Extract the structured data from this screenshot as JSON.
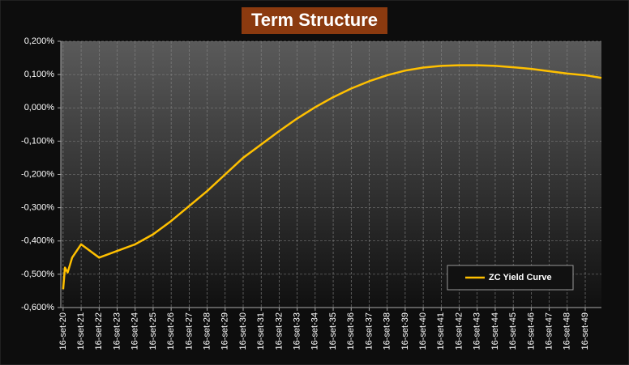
{
  "chart_data": {
    "type": "line",
    "title": "Term Structure",
    "x": [
      2020.0,
      2020.1,
      2020.25,
      2020.5,
      2021.0,
      2022.0,
      2023.0,
      2024.0,
      2025.0,
      2026.0,
      2027.0,
      2028.0,
      2029.0,
      2030.0,
      2031.0,
      2032.0,
      2033.0,
      2034.0,
      2035.0,
      2036.0,
      2037.0,
      2038.0,
      2039.0,
      2040.0,
      2041.0,
      2042.0,
      2043.0,
      2044.0,
      2045.0,
      2046.0,
      2047.0,
      2048.0,
      2049.0,
      2049.9
    ],
    "series": [
      {
        "name": "ZC Yield Curve",
        "color": "#ffc000",
        "values": [
          -0.545,
          -0.48,
          -0.495,
          -0.45,
          -0.41,
          -0.45,
          -0.43,
          -0.41,
          -0.38,
          -0.34,
          -0.295,
          -0.25,
          -0.2,
          -0.15,
          -0.11,
          -0.07,
          -0.032,
          0.002,
          0.032,
          0.058,
          0.08,
          0.098,
          0.112,
          0.121,
          0.126,
          0.128,
          0.128,
          0.126,
          0.122,
          0.117,
          0.11,
          0.103,
          0.098,
          0.09
        ]
      }
    ],
    "xlim": [
      2019.87,
      2049.9
    ],
    "xticks": [
      {
        "value": 2020,
        "label": "16-set-20"
      },
      {
        "value": 2021,
        "label": "16-set-21"
      },
      {
        "value": 2022,
        "label": "16-set-22"
      },
      {
        "value": 2023,
        "label": "16-set-23"
      },
      {
        "value": 2024,
        "label": "16-set-24"
      },
      {
        "value": 2025,
        "label": "16-set-25"
      },
      {
        "value": 2026,
        "label": "16-set-26"
      },
      {
        "value": 2027,
        "label": "16-set-27"
      },
      {
        "value": 2028,
        "label": "16-set-28"
      },
      {
        "value": 2029,
        "label": "16-set-29"
      },
      {
        "value": 2030,
        "label": "16-set-30"
      },
      {
        "value": 2031,
        "label": "16-set-31"
      },
      {
        "value": 2032,
        "label": "16-set-32"
      },
      {
        "value": 2033,
        "label": "16-set-33"
      },
      {
        "value": 2034,
        "label": "16-set-34"
      },
      {
        "value": 2035,
        "label": "16-set-35"
      },
      {
        "value": 2036,
        "label": "16-set-36"
      },
      {
        "value": 2037,
        "label": "16-set-37"
      },
      {
        "value": 2038,
        "label": "16-set-38"
      },
      {
        "value": 2039,
        "label": "16-set-39"
      },
      {
        "value": 2040,
        "label": "16-set-40"
      },
      {
        "value": 2041,
        "label": "16-set-41"
      },
      {
        "value": 2042,
        "label": "16-set-42"
      },
      {
        "value": 2043,
        "label": "16-set-43"
      },
      {
        "value": 2044,
        "label": "16-set-44"
      },
      {
        "value": 2045,
        "label": "16-set-45"
      },
      {
        "value": 2046,
        "label": "16-set-46"
      },
      {
        "value": 2047,
        "label": "16-set-47"
      },
      {
        "value": 2048,
        "label": "16-set-48"
      },
      {
        "value": 2049,
        "label": "16-set-49"
      }
    ],
    "ylim": [
      -0.6,
      0.2
    ],
    "yticks": [
      {
        "value": 0.2,
        "label": "0,200%"
      },
      {
        "value": 0.1,
        "label": "0,100%"
      },
      {
        "value": 0,
        "label": "0,000%"
      },
      {
        "value": -0.1,
        "label": "-0,100%"
      },
      {
        "value": -0.2,
        "label": "-0,200%"
      },
      {
        "value": -0.3,
        "label": "-0,300%"
      },
      {
        "value": -0.4,
        "label": "-0,400%"
      },
      {
        "value": -0.5,
        "label": "-0,500%"
      },
      {
        "value": -0.6,
        "label": "-0,600%"
      }
    ],
    "grid": true,
    "legend": "lower right"
  }
}
